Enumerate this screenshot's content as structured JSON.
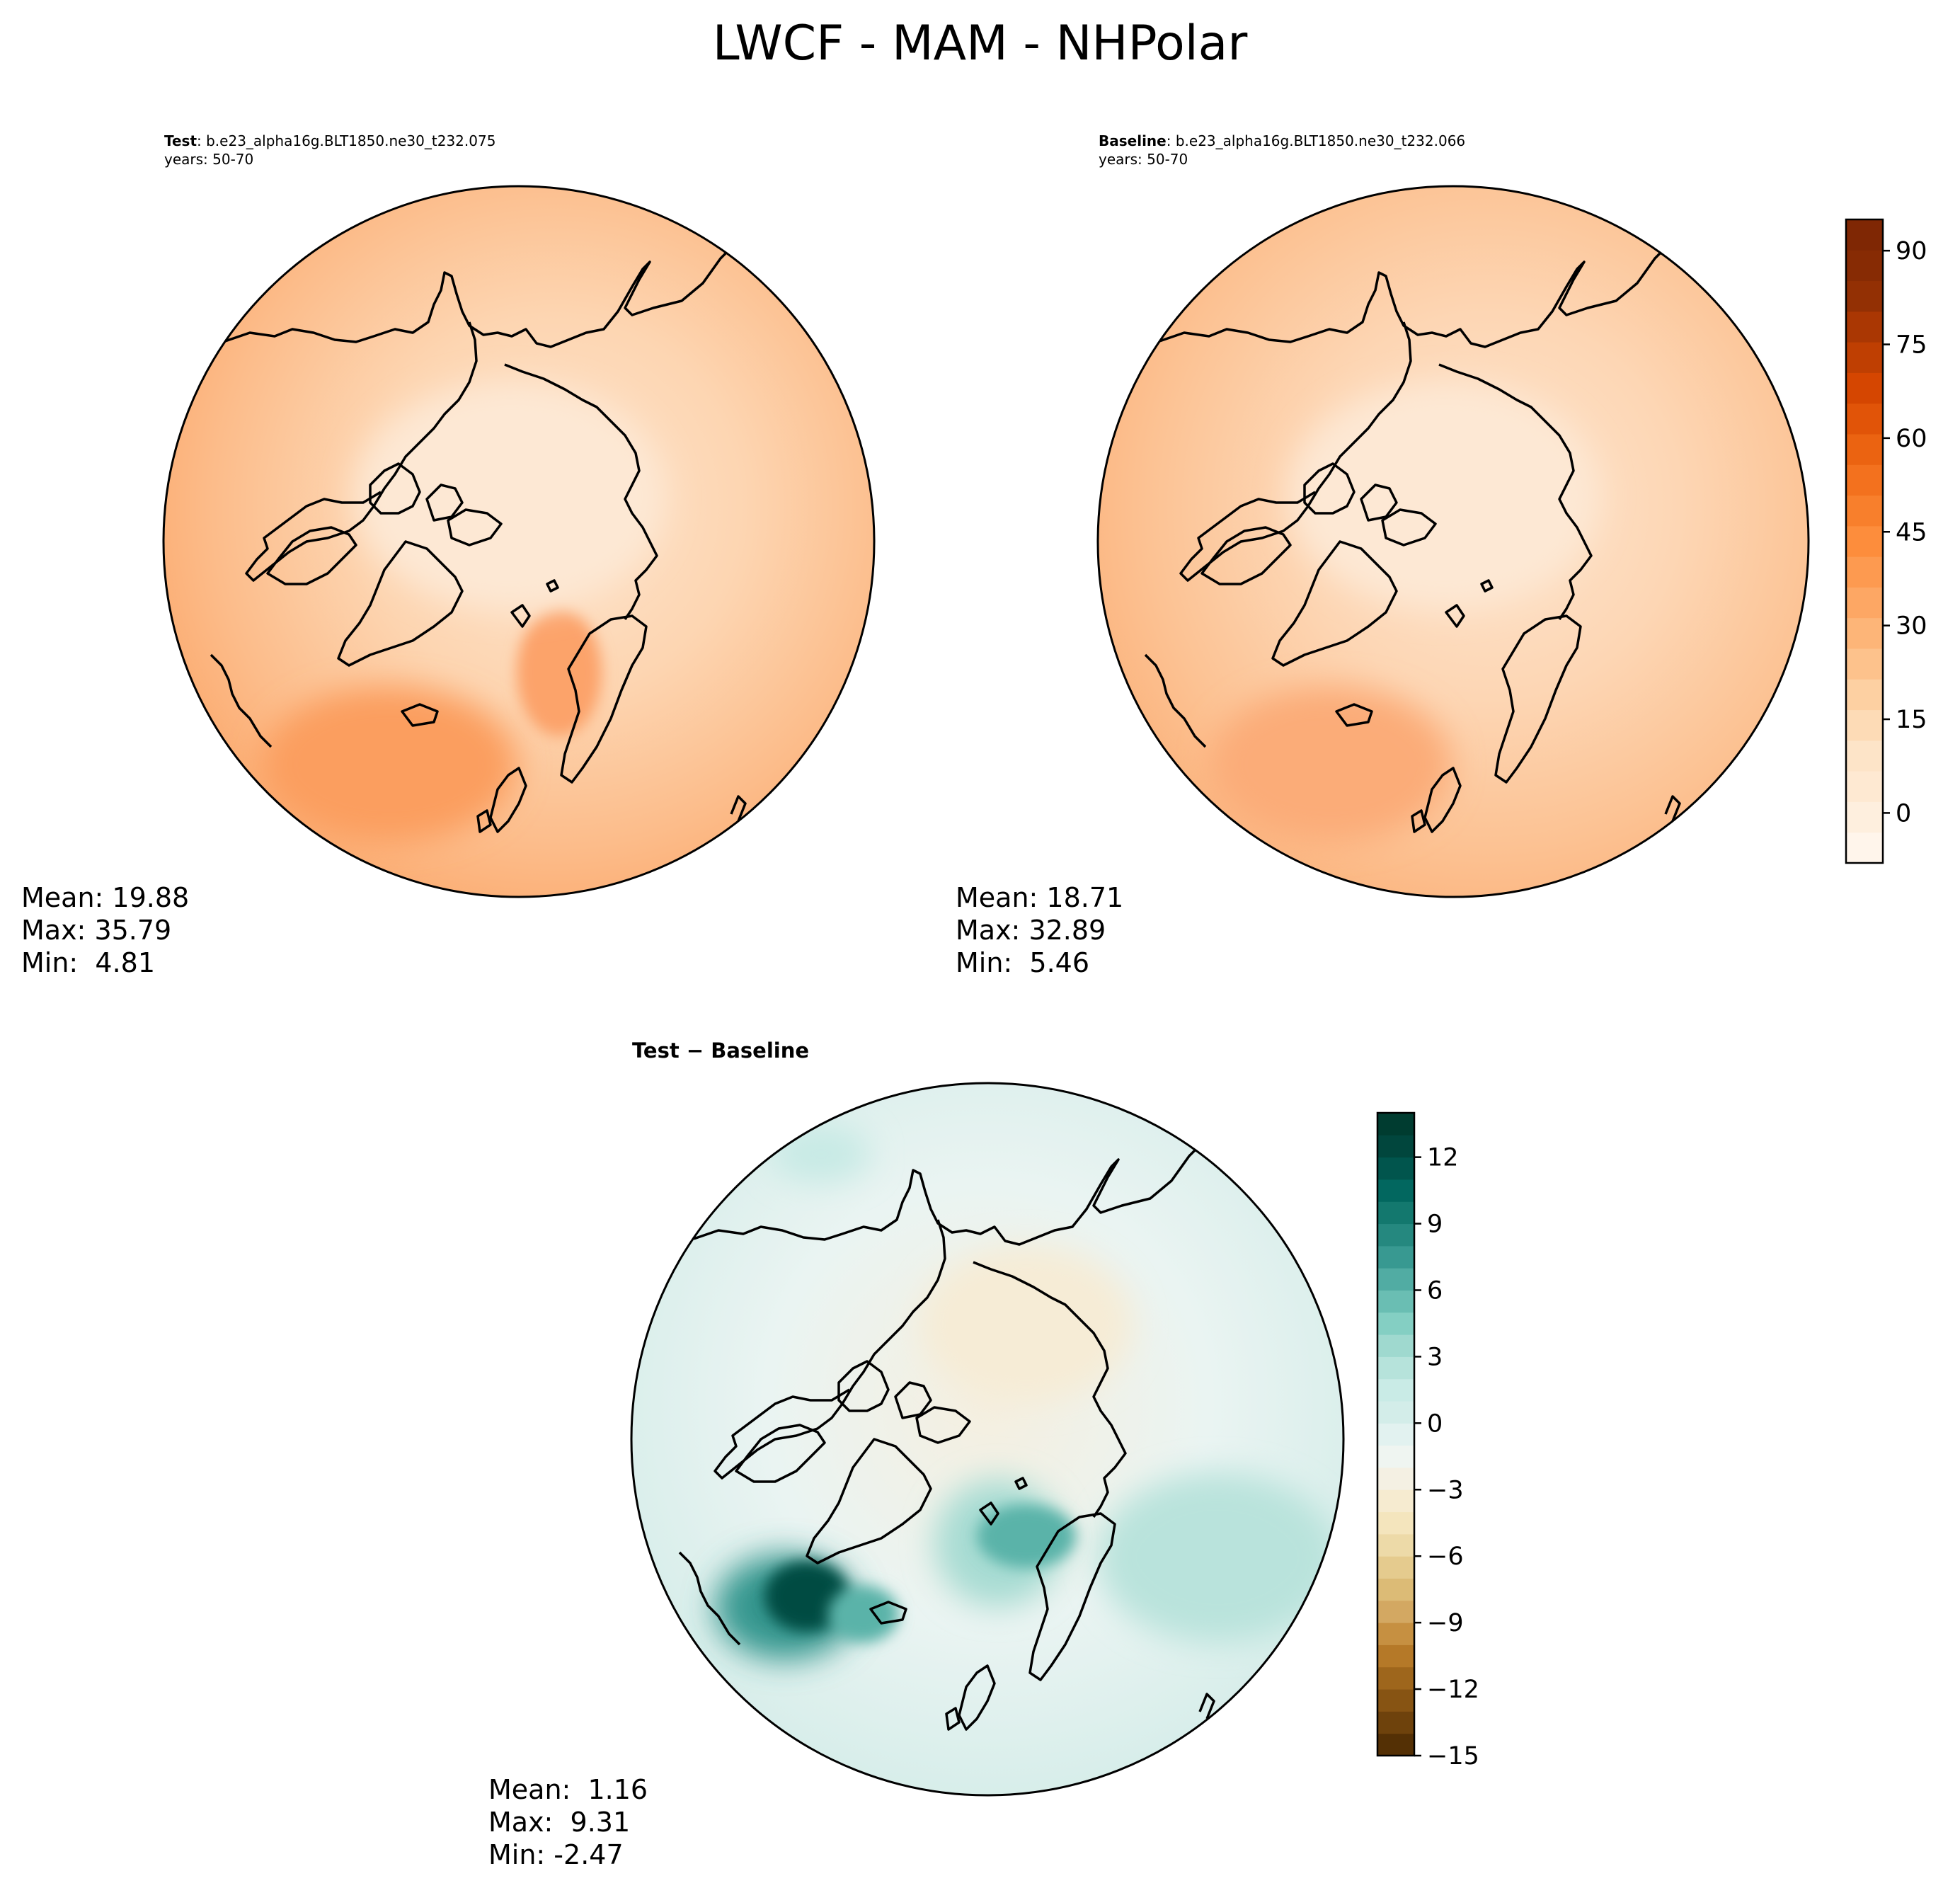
{
  "title": "LWCF - MAM - NHPolar",
  "panels": [
    {
      "id": "test",
      "label": "Test",
      "case": ": b.e23_alpha16g.BLT1850.ne30_t232.075",
      "years": "years: 50-70",
      "stats": {
        "mean": "Mean: 19.88",
        "max": "Max: 35.79",
        "min": "Min:  4.81"
      }
    },
    {
      "id": "baseline",
      "label": "Baseline",
      "case": ": b.e23_alpha16g.BLT1850.ne30_t232.066",
      "years": "years: 50-70",
      "stats": {
        "mean": "Mean: 18.71",
        "max": "Max: 32.89",
        "min": "Min:  5.46"
      }
    },
    {
      "id": "diff",
      "label": "Test − Baseline",
      "stats": {
        "mean": "Mean:  1.16",
        "max": "Max:  9.31",
        "min": "Min: -2.47"
      }
    }
  ],
  "chart_data": [
    {
      "type": "heatmap",
      "projection": "north polar stereographic",
      "panel": "test",
      "colormap": "Oranges",
      "colorbar": {
        "range": [
          -8,
          95
        ],
        "levels_step": 5,
        "ticks": [
          "0",
          "15",
          "30",
          "45",
          "60",
          "75",
          "90"
        ],
        "tick_values": [
          0,
          15,
          30,
          45,
          60,
          75,
          90
        ]
      },
      "mean": 19.88,
      "max": 35.79,
      "min": 4.81
    },
    {
      "type": "heatmap",
      "projection": "north polar stereographic",
      "panel": "baseline",
      "colormap": "Oranges",
      "mean": 18.71,
      "max": 32.89,
      "min": 5.46
    },
    {
      "type": "heatmap",
      "projection": "north polar stereographic",
      "panel": "diff",
      "colormap": "BrBG",
      "colorbar": {
        "range": [
          -15,
          14
        ],
        "ticks": [
          "12",
          "9",
          "6",
          "3",
          "0",
          "−3",
          "−6",
          "−9",
          "−12",
          "−15"
        ],
        "tick_values": [
          12,
          9,
          6,
          3,
          0,
          -3,
          -6,
          -9,
          -12,
          -15
        ]
      },
      "mean": 1.16,
      "max": 9.31,
      "min": -2.47
    }
  ],
  "colors": {
    "oranges": [
      "#fff5eb",
      "#feebd6",
      "#fde2c4",
      "#fdd0a2",
      "#fdb97e",
      "#fda35e",
      "#fd8d3c",
      "#f57622",
      "#e95e0d",
      "#d54601",
      "#b13a03",
      "#8c2d04",
      "#7f2704"
    ],
    "brbg_neg": [
      "#543005",
      "#7a4a0f",
      "#9d651b",
      "#bf812d",
      "#d2a660",
      "#dfc27d",
      "#ecd8a5",
      "#f6e8c3",
      "#f5efe0"
    ],
    "brbg_pos": [
      "#eef6f5",
      "#d6eeea",
      "#c7eae5",
      "#a7dcd3",
      "#80cdc1",
      "#5ab3a9",
      "#35978f",
      "#1a7f75",
      "#01665e",
      "#014b43",
      "#003c30"
    ]
  }
}
